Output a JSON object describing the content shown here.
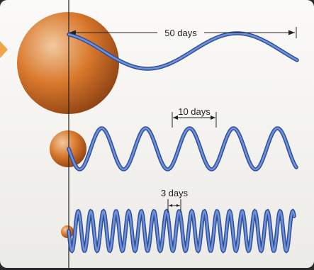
{
  "labels": {
    "period_top": "50 days",
    "period_middle": "10 days",
    "period_bottom": "3 days"
  },
  "colors": {
    "panel": "#f7f5f2",
    "wave_stroke": "#2c4f9a",
    "wave_fill": "#6f8fd8",
    "sphere_light": "#f2c9a0",
    "sphere_mid": "#d9782c",
    "sphere_dark": "#8a3f12",
    "arrow": "#f0a44a",
    "line": "#222222"
  },
  "icons": {
    "pointer": "triangle-pointer-icon"
  }
}
